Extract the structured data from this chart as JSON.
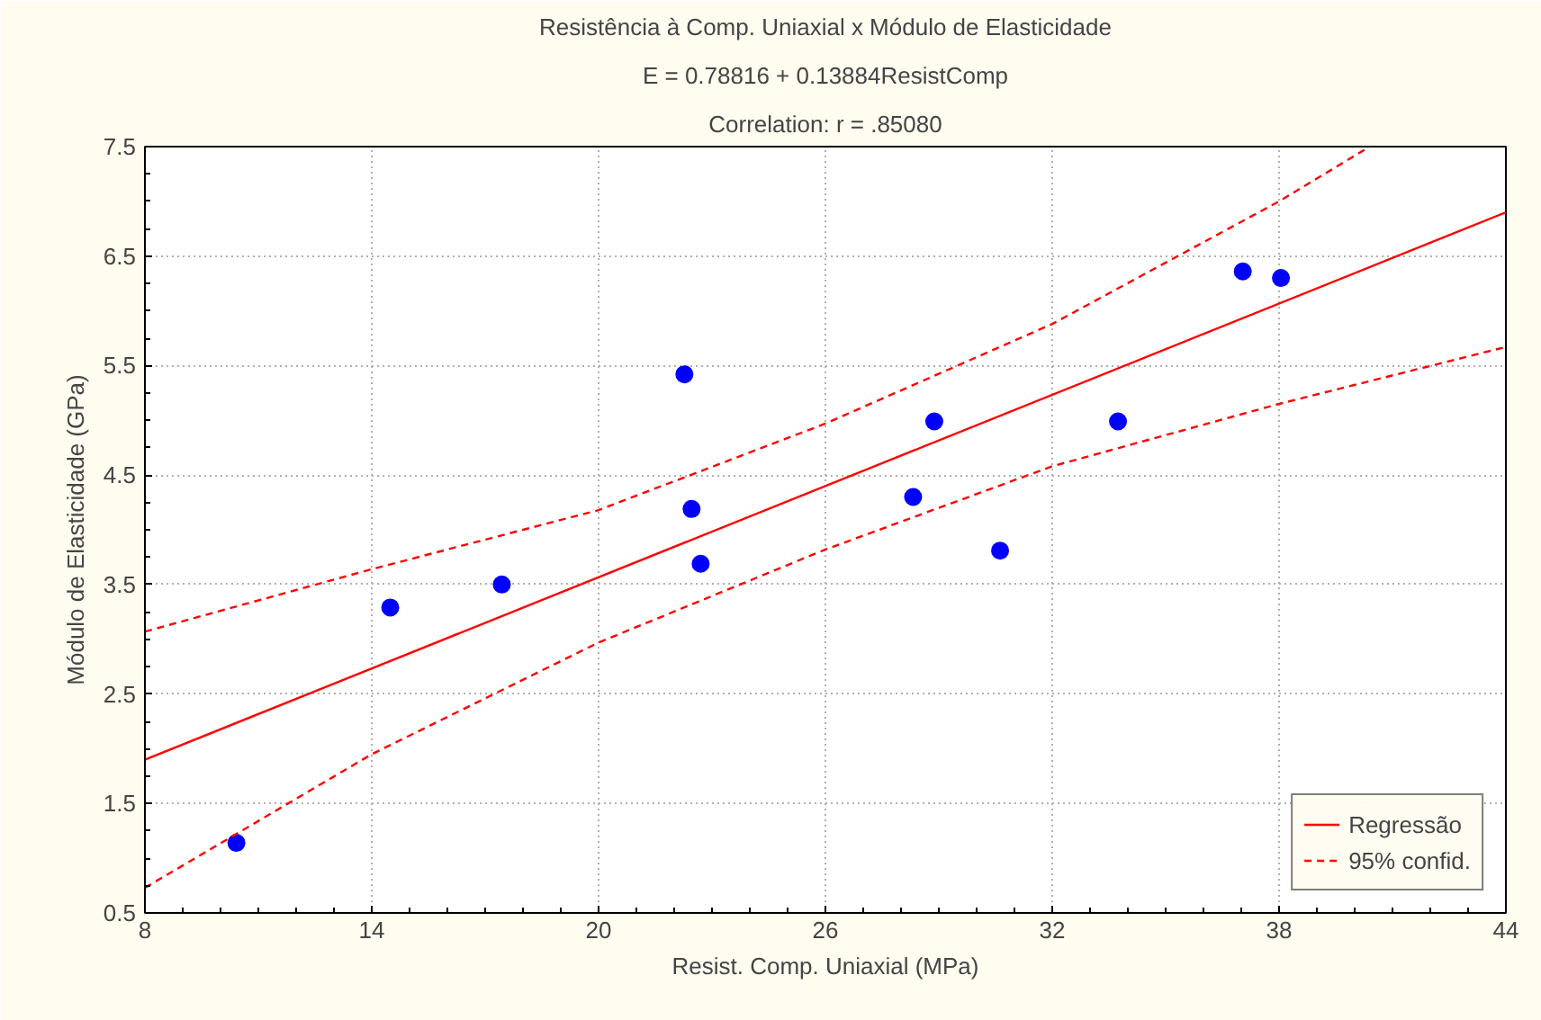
{
  "chart_data": {
    "type": "scatter",
    "title": "Resistência à Comp. Uniaxial x Módulo de Elasticidade",
    "subtitle": "E = 0.78816 + 0.13884ResistComp",
    "annotations": [
      "Correlation: r = .85080"
    ],
    "xlabel": "Resist. Comp. Uniaxial (MPa)",
    "ylabel": "Módulo de Elasticidade (GPa)",
    "xlim": [
      8,
      44
    ],
    "ylim": [
      0.5,
      7.5
    ],
    "xticks": [
      8,
      14,
      20,
      26,
      32,
      38,
      44
    ],
    "yticks": [
      0.5,
      1.5,
      2.5,
      3.5,
      4.5,
      5.5,
      6.5,
      7.5
    ],
    "grid": true,
    "legend": "bottom right",
    "marker": "circle",
    "series": [
      {
        "color": "#0000ff",
        "x": [
          10.42,
          14.49,
          17.44,
          22.27,
          22.46,
          22.7,
          28.32,
          28.88,
          30.62,
          33.74,
          37.04,
          38.05
        ],
        "values": [
          1.14,
          3.29,
          3.5,
          5.42,
          4.19,
          3.69,
          4.3,
          4.99,
          3.81,
          4.99,
          6.36,
          6.3
        ]
      },
      {
        "type": "line",
        "name": "Regressão",
        "color": "#ff0000",
        "line_style": "solid",
        "marker": "none",
        "x": [
          8,
          44
        ],
        "values": [
          1.9,
          6.9
        ]
      },
      {
        "type": "line",
        "name": "95% confid.",
        "color": "#ff0000",
        "line_style": "dashed",
        "marker": "none",
        "x": [
          8,
          14,
          20,
          26,
          32,
          38,
          40.4
        ],
        "values": [
          3.07,
          3.64,
          4.18,
          4.97,
          5.88,
          7.0,
          7.5
        ]
      },
      {
        "type": "line",
        "color": "#ff0000",
        "line_style": "dashed",
        "marker": "none",
        "x": [
          8,
          14,
          20,
          26,
          32,
          38,
          44
        ],
        "values": [
          0.73,
          1.95,
          2.97,
          3.82,
          4.58,
          5.15,
          5.67
        ]
      }
    ]
  }
}
